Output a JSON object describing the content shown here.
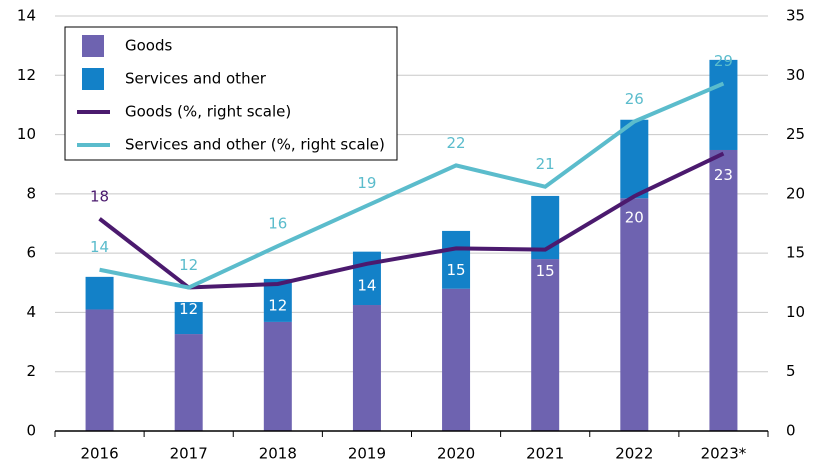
{
  "chart_data": {
    "type": "bar",
    "categories": [
      "2016",
      "2017",
      "2018",
      "2019",
      "2020",
      "2021",
      "2022",
      "2023*"
    ],
    "series": [
      {
        "name": "Goods",
        "color": "#6e63b0",
        "values": [
          4.1,
          3.27,
          3.68,
          4.25,
          4.8,
          5.8,
          7.85,
          9.48
        ]
      },
      {
        "name": "Services and other",
        "color": "#1381c8",
        "values": [
          1.1,
          1.08,
          1.45,
          1.8,
          1.95,
          2.13,
          2.65,
          3.04
        ]
      },
      {
        "name": "Goods (%, right scale)",
        "color": "#4b1a6e",
        "axis": "y2",
        "type": "line",
        "values": [
          17.9,
          12.1,
          12.4,
          14.1,
          15.4,
          15.3,
          19.8,
          23.4
        ],
        "value_labels": [
          "18",
          "12",
          "12",
          "14",
          "15",
          "15",
          "20",
          "23"
        ]
      },
      {
        "name": "Services and other (%, right scale)",
        "color": "#5bbccc",
        "axis": "y2",
        "type": "line",
        "values": [
          13.6,
          12.1,
          15.6,
          19.0,
          22.4,
          20.6,
          26.1,
          29.3
        ],
        "value_labels": [
          "14",
          "12",
          "16",
          "19",
          "22",
          "21",
          "26",
          "29"
        ]
      }
    ],
    "ylim": [
      0,
      14
    ],
    "yticks": [
      0,
      2,
      4,
      6,
      8,
      10,
      12,
      14
    ],
    "y2lim": [
      0,
      35
    ],
    "y2ticks": [
      0,
      5,
      10,
      15,
      20,
      25,
      30,
      35
    ],
    "grid": true,
    "legend": "upper left"
  }
}
